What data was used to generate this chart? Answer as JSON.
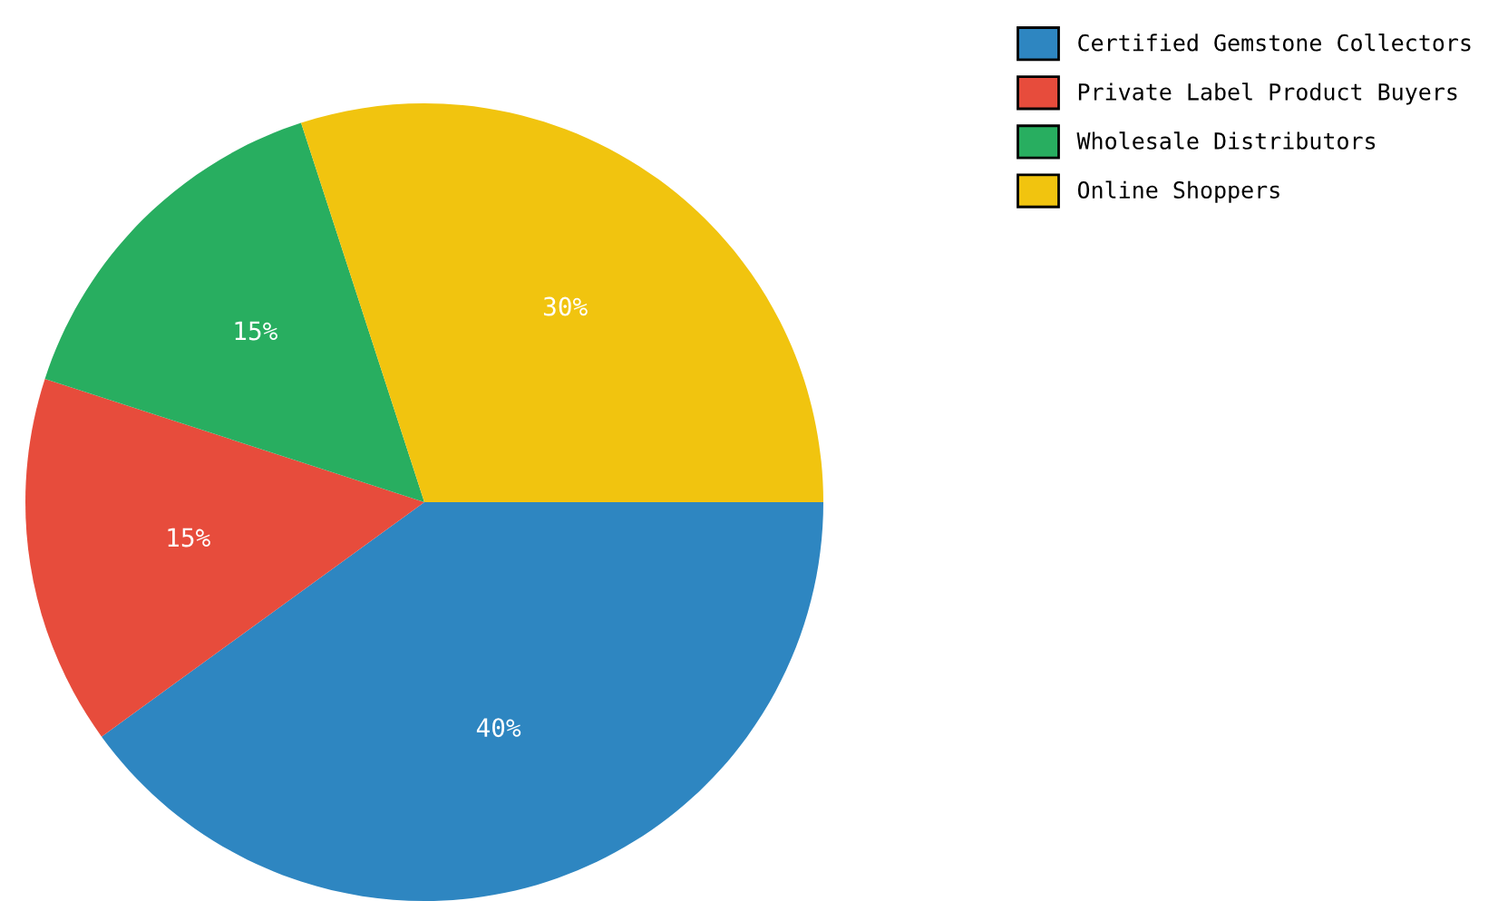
{
  "chart_data": {
    "type": "pie",
    "categories": [
      "Certified Gemstone Collectors",
      "Private Label Product Buyers",
      "Wholesale Distributors",
      "Online Shoppers"
    ],
    "values": [
      40,
      15,
      15,
      30
    ],
    "colors": [
      "#2e86c1",
      "#e74c3c",
      "#28ae60",
      "#f1c40f"
    ],
    "value_labels": [
      "40%",
      "15%",
      "15%",
      "30%"
    ],
    "legend": "top right"
  }
}
